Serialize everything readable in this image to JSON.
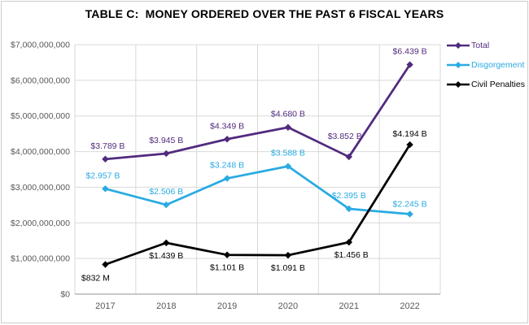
{
  "colors": {
    "total": "#512B7E",
    "disgorgement": "#29ABE2",
    "civil_penalties": "#000000",
    "gridline": "#D9D9D9",
    "axis_line": "#A6A6A6",
    "tick_text": "#595959",
    "title_text": "#000000",
    "frame_border": "#CDCDCD"
  },
  "chart_data": {
    "type": "line",
    "title": "TABLE C:  MONEY ORDERED OVER THE PAST 6 FISCAL YEARS",
    "categories": [
      "2017",
      "2018",
      "2019",
      "2020",
      "2021",
      "2022"
    ],
    "xlabel": "",
    "ylabel": "",
    "grid": true,
    "legend_position": "right",
    "y_axis": {
      "min": 0,
      "max": 7000000000,
      "tick_step": 1000000000,
      "tick_labels": [
        "$0",
        "$1,000,000,000",
        "$2,000,000,000",
        "$3,000,000,000",
        "$4,000,000,000",
        "$5,000,000,000",
        "$6,000,000,000",
        "$7,000,000,000"
      ]
    },
    "series": [
      {
        "name": "Total",
        "color": "#512B7E",
        "values": [
          3789000000,
          3945000000,
          4349000000,
          4680000000,
          3852000000,
          6439000000
        ],
        "labels": [
          "$3.789 B",
          "$3.945 B",
          "$4.349 B",
          "$4.680 B",
          "$3.852 B",
          "$6.439 B"
        ],
        "label_pos": [
          "above",
          "above",
          "above",
          "above",
          "above",
          "above"
        ],
        "label_dy": [
          -13,
          -13,
          -13,
          -13,
          -22,
          -13
        ],
        "label_dx": [
          3,
          0,
          0,
          0,
          -5,
          0
        ]
      },
      {
        "name": "Disgorgement",
        "color": "#29ABE2",
        "values": [
          2957000000,
          2506000000,
          3248000000,
          3588000000,
          2395000000,
          2245000000
        ],
        "labels": [
          "$2.957 B",
          "$2.506 B",
          "$3.248 B",
          "$3.588 B",
          "$2.395 B",
          "$2.245 B"
        ],
        "label_pos": [
          "above",
          "above",
          "above",
          "above",
          "above",
          "above"
        ],
        "label_dy": [
          -13,
          -13,
          -13,
          -13,
          -13,
          -9
        ],
        "label_dx": [
          -3,
          0,
          0,
          0,
          0,
          0
        ]
      },
      {
        "name": "Civil Penalties",
        "color": "#000000",
        "values": [
          832000000,
          1439000000,
          1101000000,
          1091000000,
          1456000000,
          4194000000
        ],
        "labels": [
          "$832 M",
          "$1.439 B",
          "$1.101 B",
          "$1.091 B",
          "$1.456 B",
          "$4.194 B"
        ],
        "label_pos": [
          "below",
          "below",
          "below",
          "below",
          "below",
          "above"
        ],
        "label_dy": [
          20,
          19,
          19,
          19,
          19,
          -10
        ],
        "label_dx": [
          -12,
          0,
          0,
          0,
          3,
          0
        ]
      }
    ]
  }
}
